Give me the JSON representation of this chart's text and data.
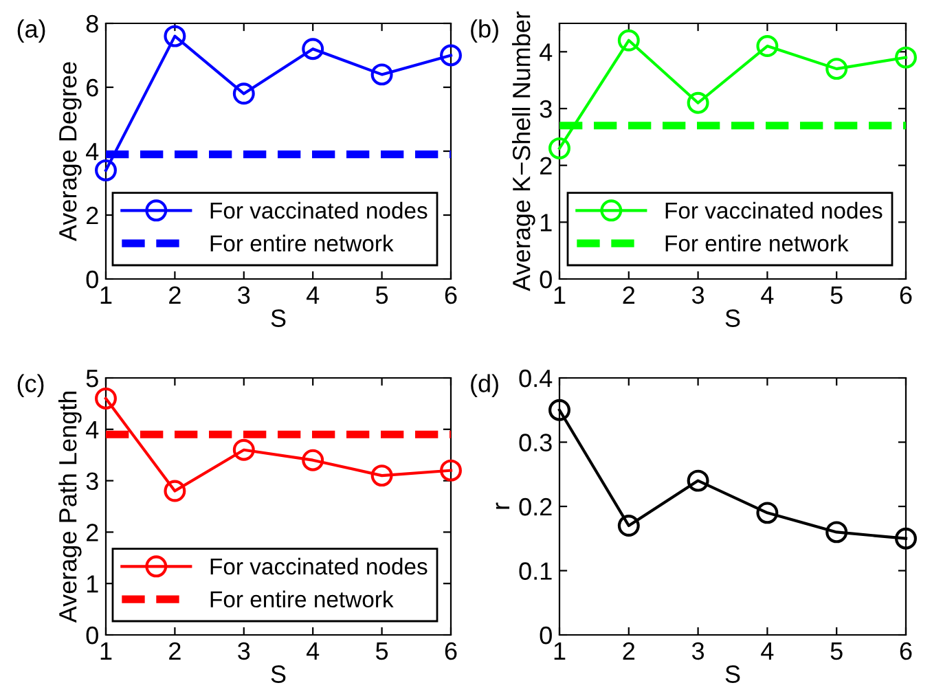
{
  "chart_data": [
    {
      "type": "line",
      "annotations": [
        "(a)"
      ],
      "xlabel": "S",
      "ylabel": "Average Degree",
      "xlim": [
        1,
        6
      ],
      "xticks": [
        1,
        2,
        3,
        4,
        5,
        6
      ],
      "ylim": [
        0,
        8
      ],
      "yticks": [
        0,
        2,
        4,
        6,
        8
      ],
      "legend": "bottom right",
      "grid": false,
      "series": [
        {
          "name": "For vaccinated nodes",
          "color": "#0000ff",
          "x": [
            1,
            2,
            3,
            4,
            5,
            6
          ],
          "values": [
            3.4,
            7.6,
            5.8,
            7.2,
            6.4,
            7.0
          ],
          "marker": "circle",
          "line_style": "solid"
        },
        {
          "name": "For entire network",
          "color": "#0000ff",
          "x": [
            1,
            6
          ],
          "values": [
            3.9,
            3.9
          ],
          "marker": "none",
          "line_style": "dashed"
        }
      ]
    },
    {
      "type": "line",
      "annotations": [
        "(b)"
      ],
      "xlabel": "S",
      "ylabel": "Average K−Shell Number",
      "xlim": [
        1,
        6
      ],
      "xticks": [
        1,
        2,
        3,
        4,
        5,
        6
      ],
      "ylim": [
        0,
        4.5
      ],
      "yticks": [
        0,
        1,
        2,
        3,
        4
      ],
      "legend": "bottom right",
      "grid": false,
      "series": [
        {
          "name": "For vaccinated nodes",
          "color": "#00ff00",
          "x": [
            1,
            2,
            3,
            4,
            5,
            6
          ],
          "values": [
            2.3,
            4.2,
            3.1,
            4.1,
            3.7,
            3.9
          ],
          "marker": "circle",
          "line_style": "solid"
        },
        {
          "name": "For entire network",
          "color": "#00ff00",
          "x": [
            1,
            6
          ],
          "values": [
            2.7,
            2.7
          ],
          "marker": "none",
          "line_style": "dashed"
        }
      ]
    },
    {
      "type": "line",
      "annotations": [
        "(c)"
      ],
      "xlabel": "S",
      "ylabel": "Average Path Length",
      "xlim": [
        1,
        6
      ],
      "xticks": [
        1,
        2,
        3,
        4,
        5,
        6
      ],
      "ylim": [
        0,
        5
      ],
      "yticks": [
        0,
        1,
        2,
        3,
        4,
        5
      ],
      "legend": "bottom right",
      "grid": false,
      "series": [
        {
          "name": "For vaccinated nodes",
          "color": "#ff0000",
          "x": [
            1,
            2,
            3,
            4,
            5,
            6
          ],
          "values": [
            4.6,
            2.8,
            3.6,
            3.4,
            3.1,
            3.2
          ],
          "marker": "circle",
          "line_style": "solid"
        },
        {
          "name": "For entire network",
          "color": "#ff0000",
          "x": [
            1,
            6
          ],
          "values": [
            3.9,
            3.9
          ],
          "marker": "none",
          "line_style": "dashed"
        }
      ]
    },
    {
      "type": "line",
      "annotations": [
        "(d)"
      ],
      "xlabel": "S",
      "ylabel": "r",
      "xlim": [
        1,
        6
      ],
      "xticks": [
        1,
        2,
        3,
        4,
        5,
        6
      ],
      "ylim": [
        0,
        0.4
      ],
      "yticks": [
        0,
        0.1,
        0.2,
        0.3,
        0.4
      ],
      "grid": false,
      "series": [
        {
          "color": "#000000",
          "x": [
            1,
            2,
            3,
            4,
            5,
            6
          ],
          "values": [
            0.35,
            0.17,
            0.24,
            0.19,
            0.16,
            0.15
          ],
          "marker": "circle",
          "line_style": "solid"
        }
      ]
    }
  ]
}
